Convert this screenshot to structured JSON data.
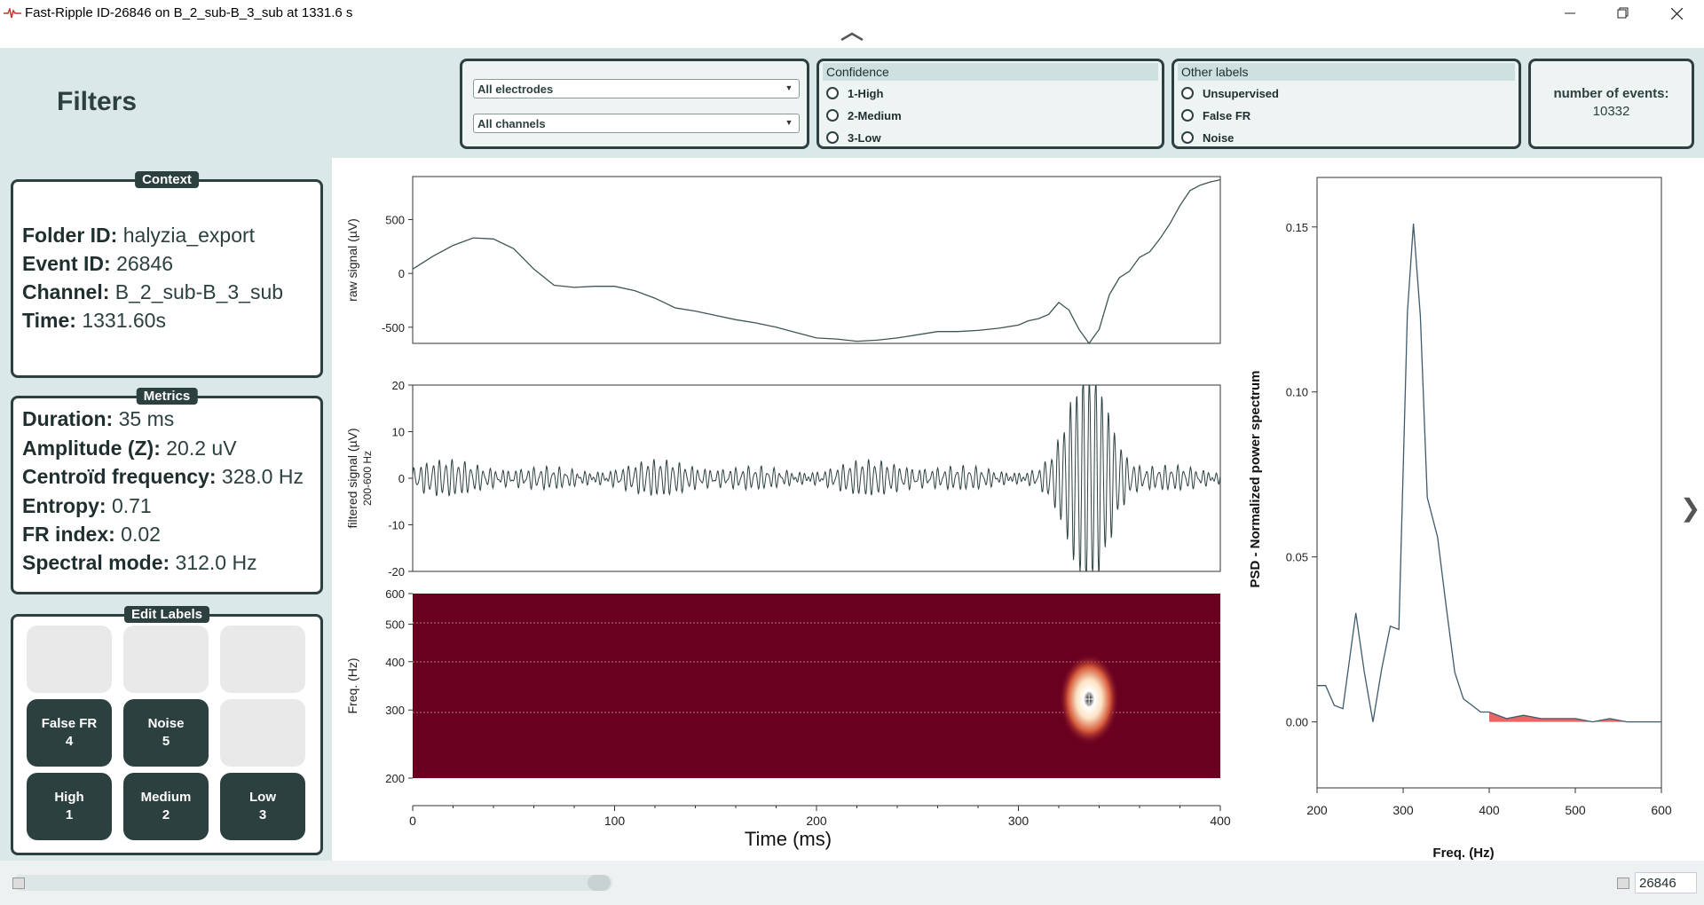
{
  "window": {
    "title": "Fast-Ripple ID-26846 on B_2_sub-B_3_sub at 1331.6 s"
  },
  "filters": {
    "title": "Filters",
    "electrode_select": "All electrodes",
    "channel_select": "All channels",
    "confidence": {
      "title": "Confidence",
      "options": [
        "1-High",
        "2-Medium",
        "3-Low"
      ]
    },
    "other_labels": {
      "title": "Other labels",
      "options": [
        "Unsupervised",
        "False FR",
        "Noise"
      ]
    },
    "count_label": "number of events:",
    "count_value": "10332"
  },
  "context": {
    "title": "Context",
    "folder_key": "Folder ID:",
    "folder_value": "halyzia_export",
    "event_key": "Event ID:",
    "event_value": "26846",
    "channel_key": "Channel:",
    "channel_value": "B_2_sub-B_3_sub",
    "time_key": "Time:",
    "time_value": "1331.60s"
  },
  "metrics": {
    "title": "Metrics",
    "duration_key": "Duration:",
    "duration_value": "35 ms",
    "amplitude_key": "Amplitude (Z):",
    "amplitude_value": "20.2 uV",
    "centroid_key": "Centroïd frequency:",
    "centroid_value": "328.0 Hz",
    "entropy_key": "Entropy:",
    "entropy_value": "0.71",
    "frindex_key": "FR index:",
    "frindex_value": "0.02",
    "spectral_key": "Spectral mode:",
    "spectral_value": "312.0 Hz"
  },
  "edit_labels": {
    "title": "Edit Labels",
    "false_fr": {
      "label": "False FR",
      "key": "4"
    },
    "noise": {
      "label": "Noise",
      "key": "5"
    },
    "high": {
      "label": "High",
      "key": "1"
    },
    "medium": {
      "label": "Medium",
      "key": "2"
    },
    "low": {
      "label": "Low",
      "key": "3"
    }
  },
  "plots": {
    "raw_ylabel": "raw signal (µV)",
    "raw_yticks": [
      "500",
      "0",
      "-500"
    ],
    "filt_ylabel": "filtered signal (µV)",
    "filt_ylabel2": "200-600 Hz",
    "filt_yticks": [
      "20",
      "10",
      "0",
      "-10",
      "-20"
    ],
    "tf_ylabel": "Freq. (Hz)",
    "tf_yticks": [
      "600",
      "500",
      "400",
      "300",
      "200"
    ],
    "time_xticks": [
      "0",
      "100",
      "200",
      "300",
      "400"
    ],
    "time_xlabel": "Time (ms)",
    "psd_ylabel": "PSD - Normalized power spectrum",
    "psd_yticks": [
      "0.15",
      "0.10",
      "0.05",
      "0.00"
    ],
    "psd_xticks": [
      "200",
      "300",
      "400",
      "500",
      "600"
    ],
    "psd_xlabel": "Freq. (Hz)"
  },
  "chart_data": [
    {
      "type": "line",
      "ylabel": "raw signal (µV)",
      "xlim": [
        0,
        400
      ],
      "ylim": [
        -650,
        900
      ],
      "x": [
        0,
        10,
        20,
        30,
        40,
        50,
        60,
        70,
        80,
        90,
        100,
        110,
        120,
        130,
        140,
        150,
        160,
        170,
        180,
        190,
        200,
        210,
        220,
        230,
        240,
        250,
        260,
        270,
        280,
        290,
        300,
        305,
        310,
        315,
        320,
        325,
        330,
        335,
        340,
        345,
        350,
        355,
        360,
        365,
        370,
        375,
        380,
        385,
        390,
        395,
        400
      ],
      "y": [
        40,
        160,
        260,
        330,
        320,
        230,
        40,
        -110,
        -130,
        -120,
        -120,
        -160,
        -230,
        -320,
        -350,
        -390,
        -430,
        -460,
        -500,
        -550,
        -600,
        -610,
        -630,
        -620,
        -600,
        -570,
        -540,
        -540,
        -530,
        -510,
        -480,
        -440,
        -420,
        -380,
        -270,
        -340,
        -520,
        -650,
        -520,
        -200,
        -40,
        20,
        150,
        200,
        320,
        460,
        630,
        770,
        820,
        850,
        870
      ]
    },
    {
      "type": "line",
      "ylabel": "filtered signal (µV)",
      "xlim": [
        0,
        400
      ],
      "ylim": [
        -20,
        20
      ],
      "burst_center_ms": 335,
      "peak_amplitude": 20
    },
    {
      "type": "heatmap",
      "ylabel": "Freq. (Hz)",
      "xlim": [
        0,
        400
      ],
      "ylim": [
        200,
        600
      ],
      "peak": {
        "time_ms": 335,
        "freq_hz": 320
      }
    },
    {
      "type": "line",
      "xlabel": "Freq. (Hz)",
      "ylabel": "PSD - Normalized power spectrum",
      "xlim": [
        200,
        600
      ],
      "ylim": [
        -0.02,
        0.165
      ],
      "x": [
        200,
        210,
        220,
        230,
        245,
        255,
        265,
        275,
        285,
        295,
        305,
        312,
        320,
        328,
        340,
        350,
        360,
        370,
        380,
        390,
        400,
        420,
        440,
        460,
        480,
        500,
        520,
        540,
        560,
        580,
        600
      ],
      "y": [
        0.011,
        0.011,
        0.005,
        0.004,
        0.033,
        0.015,
        0.0,
        0.016,
        0.029,
        0.028,
        0.124,
        0.151,
        0.123,
        0.068,
        0.056,
        0.035,
        0.015,
        0.007,
        0.005,
        0.003,
        0.003,
        0.001,
        0.002,
        0.001,
        0.001,
        0.001,
        0.0,
        0.001,
        0.0,
        0.0,
        0.0
      ],
      "shaded_from_hz": 400
    }
  ],
  "footer": {
    "event_id": "26846"
  }
}
